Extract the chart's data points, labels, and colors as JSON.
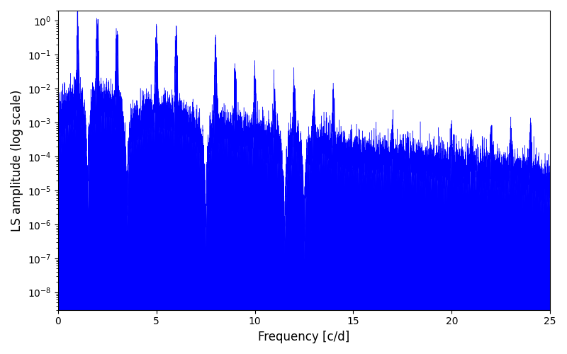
{
  "xlabel": "Frequency [c/d]",
  "ylabel": "LS amplitude (log scale)",
  "line_color": "#0000FF",
  "xlim": [
    0,
    25
  ],
  "ylim": [
    3e-09,
    2.0
  ],
  "freq_max": 25,
  "n_points": 10000,
  "background_color": "#ffffff",
  "figsize": [
    8.0,
    5.0
  ],
  "dpi": 100,
  "harmonics": [
    [
      1,
      0.3
    ],
    [
      2,
      0.6
    ],
    [
      3,
      0.25
    ],
    [
      5,
      0.2
    ],
    [
      6,
      0.15
    ],
    [
      8,
      0.06
    ],
    [
      9,
      0.015
    ],
    [
      10,
      0.012
    ],
    [
      11,
      0.006
    ],
    [
      12,
      0.01
    ],
    [
      13,
      0.003
    ],
    [
      14,
      0.003
    ],
    [
      17,
      0.00025
    ],
    [
      20,
      0.0002
    ],
    [
      21,
      0.00015
    ],
    [
      22,
      0.0003
    ],
    [
      23,
      0.00025
    ],
    [
      24,
      0.00025
    ]
  ]
}
